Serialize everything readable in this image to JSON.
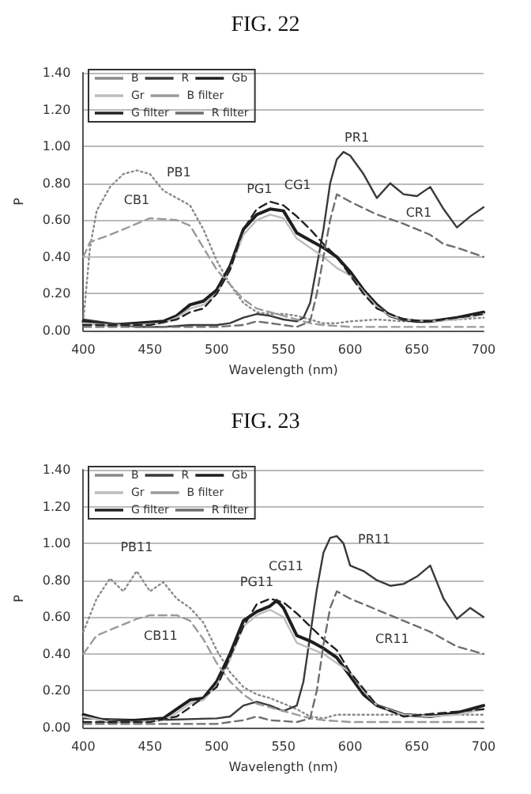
{
  "chart_data": [
    {
      "type": "line",
      "title": "FIG. 22",
      "xlabel": "Wavelength (nm)",
      "ylabel": "P",
      "xlim": [
        400,
        700
      ],
      "xticks": [
        400,
        450,
        500,
        550,
        600,
        650,
        700
      ],
      "ylim": [
        0,
        1.4
      ],
      "yticks": [
        {
          "value": 0,
          "label": "0.00"
        },
        {
          "value": 0.2,
          "label": "0.20"
        },
        {
          "value": 0.4,
          "label": "0.40"
        },
        {
          "value": 0.6,
          "label": "0.60"
        },
        {
          "value": 0.8,
          "label": "0.80"
        },
        {
          "value": 1,
          "label": "1.00"
        },
        {
          "value": 1.2,
          "label": "1.20"
        },
        {
          "value": 1.4,
          "label": "1.40"
        }
      ],
      "grid": "y",
      "legend": "top left",
      "marker": "none",
      "series": [
        {
          "name": "B",
          "color": "#8a8a8a",
          "line_style": "dotted",
          "x": [
            400,
            405,
            410,
            420,
            430,
            440,
            450,
            460,
            470,
            480,
            490,
            500,
            510,
            520,
            530,
            540,
            550,
            560,
            570,
            580,
            590,
            600,
            620,
            640,
            660,
            680,
            700
          ],
          "values": [
            0.05,
            0.45,
            0.65,
            0.78,
            0.85,
            0.87,
            0.85,
            0.76,
            0.72,
            0.68,
            0.55,
            0.38,
            0.25,
            0.15,
            0.1,
            0.09,
            0.09,
            0.08,
            0.06,
            0.04,
            0.04,
            0.05,
            0.06,
            0.05,
            0.05,
            0.06,
            0.07
          ]
        },
        {
          "name": "R",
          "color": "#3a3a3a",
          "line_style": "solid",
          "x": [
            400,
            420,
            440,
            460,
            480,
            500,
            510,
            520,
            530,
            540,
            550,
            560,
            565,
            570,
            575,
            580,
            585,
            590,
            595,
            600,
            610,
            620,
            630,
            640,
            650,
            660,
            670,
            680,
            690,
            700
          ],
          "values": [
            0.06,
            0.04,
            0.02,
            0.02,
            0.03,
            0.03,
            0.04,
            0.07,
            0.09,
            0.08,
            0.06,
            0.05,
            0.07,
            0.15,
            0.35,
            0.55,
            0.8,
            0.93,
            0.97,
            0.95,
            0.85,
            0.72,
            0.8,
            0.74,
            0.73,
            0.78,
            0.66,
            0.56,
            0.62,
            0.67
          ]
        },
        {
          "name": "Gb",
          "color": "#1e1e1e",
          "line_style": "solid",
          "x": [
            400,
            420,
            440,
            460,
            470,
            480,
            490,
            500,
            510,
            520,
            530,
            540,
            550,
            560,
            570,
            580,
            590,
            600,
            610,
            620,
            630,
            640,
            650,
            660,
            680,
            700
          ],
          "values": [
            0.05,
            0.03,
            0.04,
            0.05,
            0.08,
            0.14,
            0.16,
            0.22,
            0.35,
            0.55,
            0.63,
            0.66,
            0.65,
            0.53,
            0.49,
            0.45,
            0.4,
            0.32,
            0.22,
            0.14,
            0.08,
            0.06,
            0.05,
            0.05,
            0.07,
            0.1
          ]
        },
        {
          "name": "Gr",
          "color": "#bdbdbd",
          "line_style": "solid",
          "x": [
            400,
            420,
            440,
            460,
            470,
            480,
            490,
            500,
            510,
            520,
            530,
            540,
            550,
            560,
            570,
            580,
            590,
            600,
            610,
            620,
            630,
            640,
            660,
            680,
            700
          ],
          "values": [
            0.04,
            0.03,
            0.03,
            0.04,
            0.07,
            0.12,
            0.14,
            0.2,
            0.33,
            0.52,
            0.6,
            0.63,
            0.61,
            0.5,
            0.45,
            0.4,
            0.34,
            0.3,
            0.21,
            0.13,
            0.08,
            0.06,
            0.05,
            0.06,
            0.09
          ]
        },
        {
          "name": "B filter",
          "color": "#9a9a9a",
          "line_style": "dashed",
          "x": [
            400,
            405,
            420,
            440,
            450,
            470,
            480,
            490,
            500,
            510,
            520,
            530,
            540,
            550,
            560,
            570,
            580,
            600,
            650,
            700
          ],
          "values": [
            0.4,
            0.48,
            0.52,
            0.58,
            0.61,
            0.6,
            0.57,
            0.45,
            0.33,
            0.25,
            0.17,
            0.12,
            0.1,
            0.08,
            0.06,
            0.04,
            0.03,
            0.02,
            0.02,
            0.02
          ]
        },
        {
          "name": "G filter",
          "color": "#222222",
          "line_style": "dashed",
          "x": [
            400,
            450,
            470,
            480,
            490,
            500,
            510,
            520,
            530,
            540,
            550,
            560,
            570,
            580,
            590,
            600,
            610,
            620,
            640,
            660,
            700
          ],
          "values": [
            0.03,
            0.03,
            0.06,
            0.1,
            0.12,
            0.2,
            0.33,
            0.55,
            0.66,
            0.7,
            0.68,
            0.62,
            0.55,
            0.47,
            0.4,
            0.3,
            0.2,
            0.12,
            0.06,
            0.05,
            0.09
          ]
        },
        {
          "name": "R filter",
          "color": "#6e6e6e",
          "line_style": "dashed",
          "x": [
            400,
            450,
            500,
            520,
            530,
            540,
            560,
            570,
            575,
            580,
            585,
            590,
            600,
            620,
            640,
            660,
            670,
            680,
            700
          ],
          "values": [
            0.02,
            0.02,
            0.02,
            0.03,
            0.05,
            0.04,
            0.02,
            0.05,
            0.2,
            0.4,
            0.6,
            0.74,
            0.7,
            0.63,
            0.58,
            0.52,
            0.47,
            0.45,
            0.4
          ]
        }
      ],
      "annotations": [
        {
          "text": "PB1",
          "x": 463,
          "y": 0.74
        },
        {
          "text": "CB1",
          "x": 440,
          "y": 0.58
        },
        {
          "text": "PG1",
          "x": 532,
          "y": 0.64
        },
        {
          "text": "CG1",
          "x": 552,
          "y": 0.67
        },
        {
          "text": "PR1",
          "x": 605,
          "y": 0.92
        },
        {
          "text": "CR1",
          "x": 660,
          "y": 0.52
        }
      ]
    },
    {
      "type": "line",
      "title": "FIG. 23",
      "xlabel": "Wavelength (nm)",
      "ylabel": "P",
      "xlim": [
        400,
        700
      ],
      "xticks": [
        400,
        450,
        500,
        550,
        600,
        650,
        700
      ],
      "ylim": [
        0,
        1.4
      ],
      "yticks": [
        {
          "value": 0,
          "label": "0.00"
        },
        {
          "value": 0.2,
          "label": "0.20"
        },
        {
          "value": 0.4,
          "label": "0.40"
        },
        {
          "value": 0.6,
          "label": "0.60"
        },
        {
          "value": 0.8,
          "label": "0.80"
        },
        {
          "value": 1,
          "label": "1.00"
        },
        {
          "value": 1.2,
          "label": "1.20"
        },
        {
          "value": 1.4,
          "label": "1.40"
        }
      ],
      "grid": "y",
      "legend": "top left",
      "marker": "none",
      "series": [
        {
          "name": "B",
          "color": "#8a8a8a",
          "line_style": "dotted",
          "x": [
            400,
            410,
            420,
            430,
            440,
            450,
            460,
            470,
            480,
            490,
            500,
            510,
            520,
            530,
            540,
            550,
            560,
            570,
            580,
            590,
            600,
            650,
            700
          ],
          "values": [
            0.52,
            0.7,
            0.81,
            0.74,
            0.85,
            0.74,
            0.79,
            0.7,
            0.65,
            0.57,
            0.42,
            0.3,
            0.22,
            0.18,
            0.16,
            0.13,
            0.1,
            0.06,
            0.05,
            0.07,
            0.07,
            0.07,
            0.07
          ]
        },
        {
          "name": "R",
          "color": "#3a3a3a",
          "line_style": "solid",
          "x": [
            400,
            450,
            500,
            510,
            520,
            530,
            540,
            550,
            560,
            565,
            570,
            575,
            580,
            585,
            590,
            595,
            600,
            610,
            620,
            630,
            640,
            650,
            660,
            670,
            680,
            690,
            700
          ],
          "values": [
            0.05,
            0.04,
            0.05,
            0.06,
            0.12,
            0.14,
            0.12,
            0.09,
            0.12,
            0.25,
            0.5,
            0.75,
            0.95,
            1.03,
            1.04,
            1,
            0.88,
            0.85,
            0.8,
            0.77,
            0.78,
            0.82,
            0.88,
            0.7,
            0.59,
            0.65,
            0.6
          ]
        },
        {
          "name": "Gb",
          "color": "#1e1e1e",
          "line_style": "solid",
          "x": [
            400,
            420,
            440,
            460,
            470,
            480,
            490,
            500,
            510,
            520,
            530,
            540,
            545,
            550,
            560,
            570,
            580,
            590,
            600,
            610,
            620,
            640,
            660,
            680,
            700
          ],
          "values": [
            0.07,
            0.03,
            0.04,
            0.05,
            0.1,
            0.15,
            0.16,
            0.25,
            0.4,
            0.58,
            0.63,
            0.66,
            0.69,
            0.65,
            0.5,
            0.47,
            0.43,
            0.38,
            0.28,
            0.18,
            0.12,
            0.07,
            0.06,
            0.08,
            0.12
          ]
        },
        {
          "name": "Gr",
          "color": "#bdbdbd",
          "line_style": "solid",
          "x": [
            400,
            420,
            440,
            460,
            470,
            480,
            490,
            500,
            510,
            520,
            530,
            540,
            550,
            560,
            570,
            580,
            590,
            600,
            610,
            620,
            640,
            660,
            680,
            700
          ],
          "values": [
            0.06,
            0.03,
            0.03,
            0.04,
            0.08,
            0.13,
            0.15,
            0.23,
            0.37,
            0.55,
            0.61,
            0.64,
            0.6,
            0.46,
            0.43,
            0.4,
            0.35,
            0.3,
            0.2,
            0.12,
            0.07,
            0.06,
            0.07,
            0.1
          ]
        },
        {
          "name": "B filter",
          "color": "#9a9a9a",
          "line_style": "dashed",
          "x": [
            400,
            410,
            420,
            440,
            450,
            470,
            480,
            490,
            500,
            510,
            520,
            530,
            550,
            570,
            580,
            600,
            700
          ],
          "values": [
            0.4,
            0.5,
            0.53,
            0.59,
            0.61,
            0.61,
            0.58,
            0.48,
            0.35,
            0.25,
            0.18,
            0.13,
            0.09,
            0.05,
            0.04,
            0.03,
            0.03
          ]
        },
        {
          "name": "G filter",
          "color": "#222222",
          "line_style": "dashed",
          "x": [
            400,
            450,
            470,
            480,
            500,
            520,
            530,
            540,
            550,
            560,
            580,
            590,
            600,
            620,
            640,
            700
          ],
          "values": [
            0.03,
            0.03,
            0.06,
            0.11,
            0.22,
            0.55,
            0.67,
            0.7,
            0.68,
            0.62,
            0.48,
            0.42,
            0.3,
            0.12,
            0.06,
            0.1
          ]
        },
        {
          "name": "R filter",
          "color": "#6e6e6e",
          "line_style": "dashed",
          "x": [
            400,
            500,
            520,
            530,
            540,
            560,
            570,
            575,
            580,
            585,
            590,
            600,
            620,
            640,
            660,
            680,
            700
          ],
          "values": [
            0.02,
            0.02,
            0.04,
            0.06,
            0.04,
            0.03,
            0.05,
            0.2,
            0.45,
            0.65,
            0.74,
            0.7,
            0.64,
            0.58,
            0.52,
            0.44,
            0.4
          ]
        }
      ],
      "annotations": [
        {
          "text": "PB11",
          "x": 440,
          "y": 0.85
        },
        {
          "text": "CB11",
          "x": 440,
          "y": 0.59
        },
        {
          "text": "PG11",
          "x": 530,
          "y": 0.66
        },
        {
          "text": "CG11",
          "x": 552,
          "y": 0.68
        },
        {
          "text": "PR11",
          "x": 600,
          "y": 0.93
        },
        {
          "text": "CR11",
          "x": 655,
          "y": 0.53
        }
      ]
    }
  ]
}
